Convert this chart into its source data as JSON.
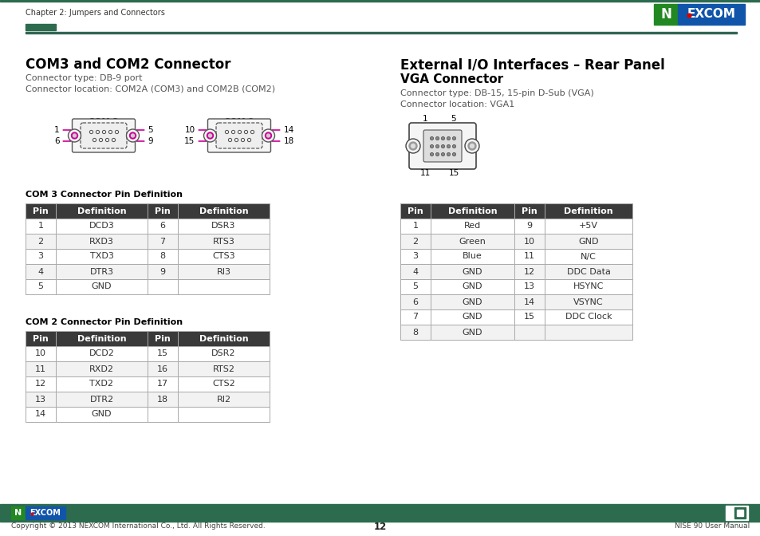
{
  "page_title_left": "Chapter 2: Jumpers and Connectors",
  "section1_title": "COM3 and COM2 Connector",
  "section1_sub1": "Connector type: DB-9 port",
  "section1_sub2": "Connector location: COM2A (COM3) and COM2B (COM2)",
  "section2_title": "External I/O Interfaces – Rear Panel",
  "section2_sub_title": "VGA Connector",
  "section2_sub1": "Connector type: DB-15, 15-pin D-Sub (VGA)",
  "section2_sub2": "Connector location: VGA1",
  "com3_table_title": "COM 3 Connector Pin Definition",
  "com3_table": [
    [
      "Pin",
      "Definition",
      "Pin",
      "Definition"
    ],
    [
      "1",
      "DCD3",
      "6",
      "DSR3"
    ],
    [
      "2",
      "RXD3",
      "7",
      "RTS3"
    ],
    [
      "3",
      "TXD3",
      "8",
      "CTS3"
    ],
    [
      "4",
      "DTR3",
      "9",
      "RI3"
    ],
    [
      "5",
      "GND",
      "",
      ""
    ]
  ],
  "com2_table_title": "COM 2 Connector Pin Definition",
  "com2_table": [
    [
      "Pin",
      "Definition",
      "Pin",
      "Definition"
    ],
    [
      "10",
      "DCD2",
      "15",
      "DSR2"
    ],
    [
      "11",
      "RXD2",
      "16",
      "RTS2"
    ],
    [
      "12",
      "TXD2",
      "17",
      "CTS2"
    ],
    [
      "13",
      "DTR2",
      "18",
      "RI2"
    ],
    [
      "14",
      "GND",
      "",
      ""
    ]
  ],
  "vga_table": [
    [
      "Pin",
      "Definition",
      "Pin",
      "Definition"
    ],
    [
      "1",
      "Red",
      "9",
      "+5V"
    ],
    [
      "2",
      "Green",
      "10",
      "GND"
    ],
    [
      "3",
      "Blue",
      "11",
      "N/C"
    ],
    [
      "4",
      "GND",
      "12",
      "DDC Data"
    ],
    [
      "5",
      "GND",
      "13",
      "HSYNC"
    ],
    [
      "6",
      "GND",
      "14",
      "VSYNC"
    ],
    [
      "7",
      "GND",
      "15",
      "DDC Clock"
    ],
    [
      "8",
      "GND",
      "",
      ""
    ]
  ],
  "footer_text": "Copyright © 2013 NEXCOM International Co., Ltd. All Rights Reserved.",
  "footer_page": "12",
  "footer_right": "NISE 90 User Manual",
  "header_bar_color": "#2d6b4f",
  "table_header_bg": "#3a3a3a",
  "table_header_fg": "#ffffff",
  "table_row_white": "#ffffff",
  "table_row_gray": "#f2f2f2",
  "table_border": "#aaaaaa",
  "nexcom_blue": "#1155aa",
  "nexcom_green": "#228822",
  "nexcom_red": "#dd0000",
  "com_label_color": "#cc0099",
  "divider_color": "#336655"
}
